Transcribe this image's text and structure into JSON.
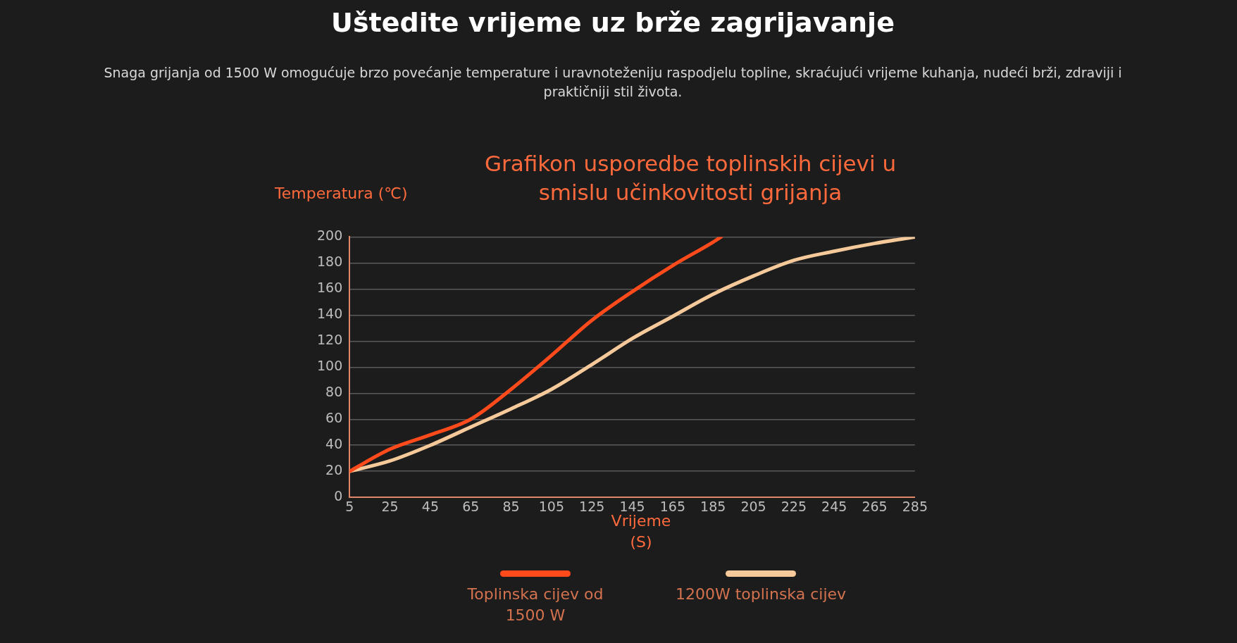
{
  "chart_data": {
    "type": "line",
    "title": "Grafikon usporedbe toplinskih cijevi u smislu učinkovitosti grijanja",
    "annotations": [
      "Uštedite vrijeme uz brže zagrijavanje",
      "Snaga grijanja od 1500 W omogućuje brzo povećanje temperature i uravnoteženiju raspodjelu topline, skraćujući vrijeme kuhanja, nudeći brži, zdraviji i praktičniji stil života."
    ],
    "xlabel": "Vrijeme (S)",
    "ylabel": "Temperatura (℃)",
    "x": [
      5,
      25,
      45,
      65,
      85,
      105,
      125,
      145,
      165,
      185,
      189
    ],
    "series": [
      {
        "name": "Toplinska cijev od 1500 W",
        "color": "#ff4a1c",
        "values": [
          20,
          37,
          48,
          60,
          83,
          109,
          136,
          158,
          178,
          196,
          200
        ]
      },
      {
        "name": "1200W toplinska cijev",
        "color": "#f5c99a",
        "x": [
          5,
          25,
          45,
          65,
          85,
          105,
          125,
          145,
          165,
          185,
          205,
          225,
          245,
          265,
          285
        ],
        "values": [
          20,
          28,
          40,
          54,
          68,
          83,
          102,
          122,
          139,
          156,
          170,
          182,
          189,
          195,
          200
        ]
      }
    ],
    "xlim": [
      5,
      285
    ],
    "xticks": [
      5,
      25,
      45,
      65,
      85,
      105,
      125,
      145,
      165,
      185,
      205,
      225,
      245,
      265,
      285
    ],
    "ylim": [
      0,
      200
    ],
    "yticks": [
      0,
      20,
      40,
      60,
      80,
      100,
      120,
      140,
      160,
      180,
      200
    ],
    "grid": "y",
    "legend": "bottom",
    "marker": "none",
    "line_style": "solid"
  }
}
